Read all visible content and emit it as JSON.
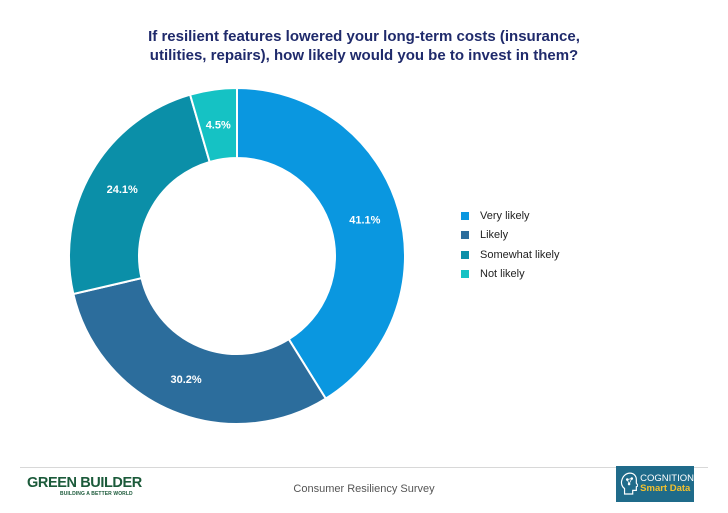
{
  "chart_data": {
    "type": "pie",
    "donut": true,
    "title": "If resilient features lowered your long-term costs (insurance, utilities, repairs), how likely would you be to invest in them?",
    "categories": [
      "Very likely",
      "Likely",
      "Somewhat likely",
      "Not likely"
    ],
    "values": [
      41.1,
      30.2,
      24.1,
      4.5
    ],
    "labels": [
      "41.1%",
      "30.2%",
      "24.1%",
      "4.5%"
    ],
    "colors": [
      "#0a97e0",
      "#2c6d9c",
      "#0b8fa8",
      "#15c2c4"
    ],
    "legend": "right"
  },
  "footer": {
    "left_brand": "GREEN BUILDER",
    "left_tagline": "BUILDING A BETTER WORLD",
    "center_text": "Consumer Resiliency Survey",
    "right_brand_line1": "COGNITION",
    "right_brand_line2": "Smart Data"
  }
}
